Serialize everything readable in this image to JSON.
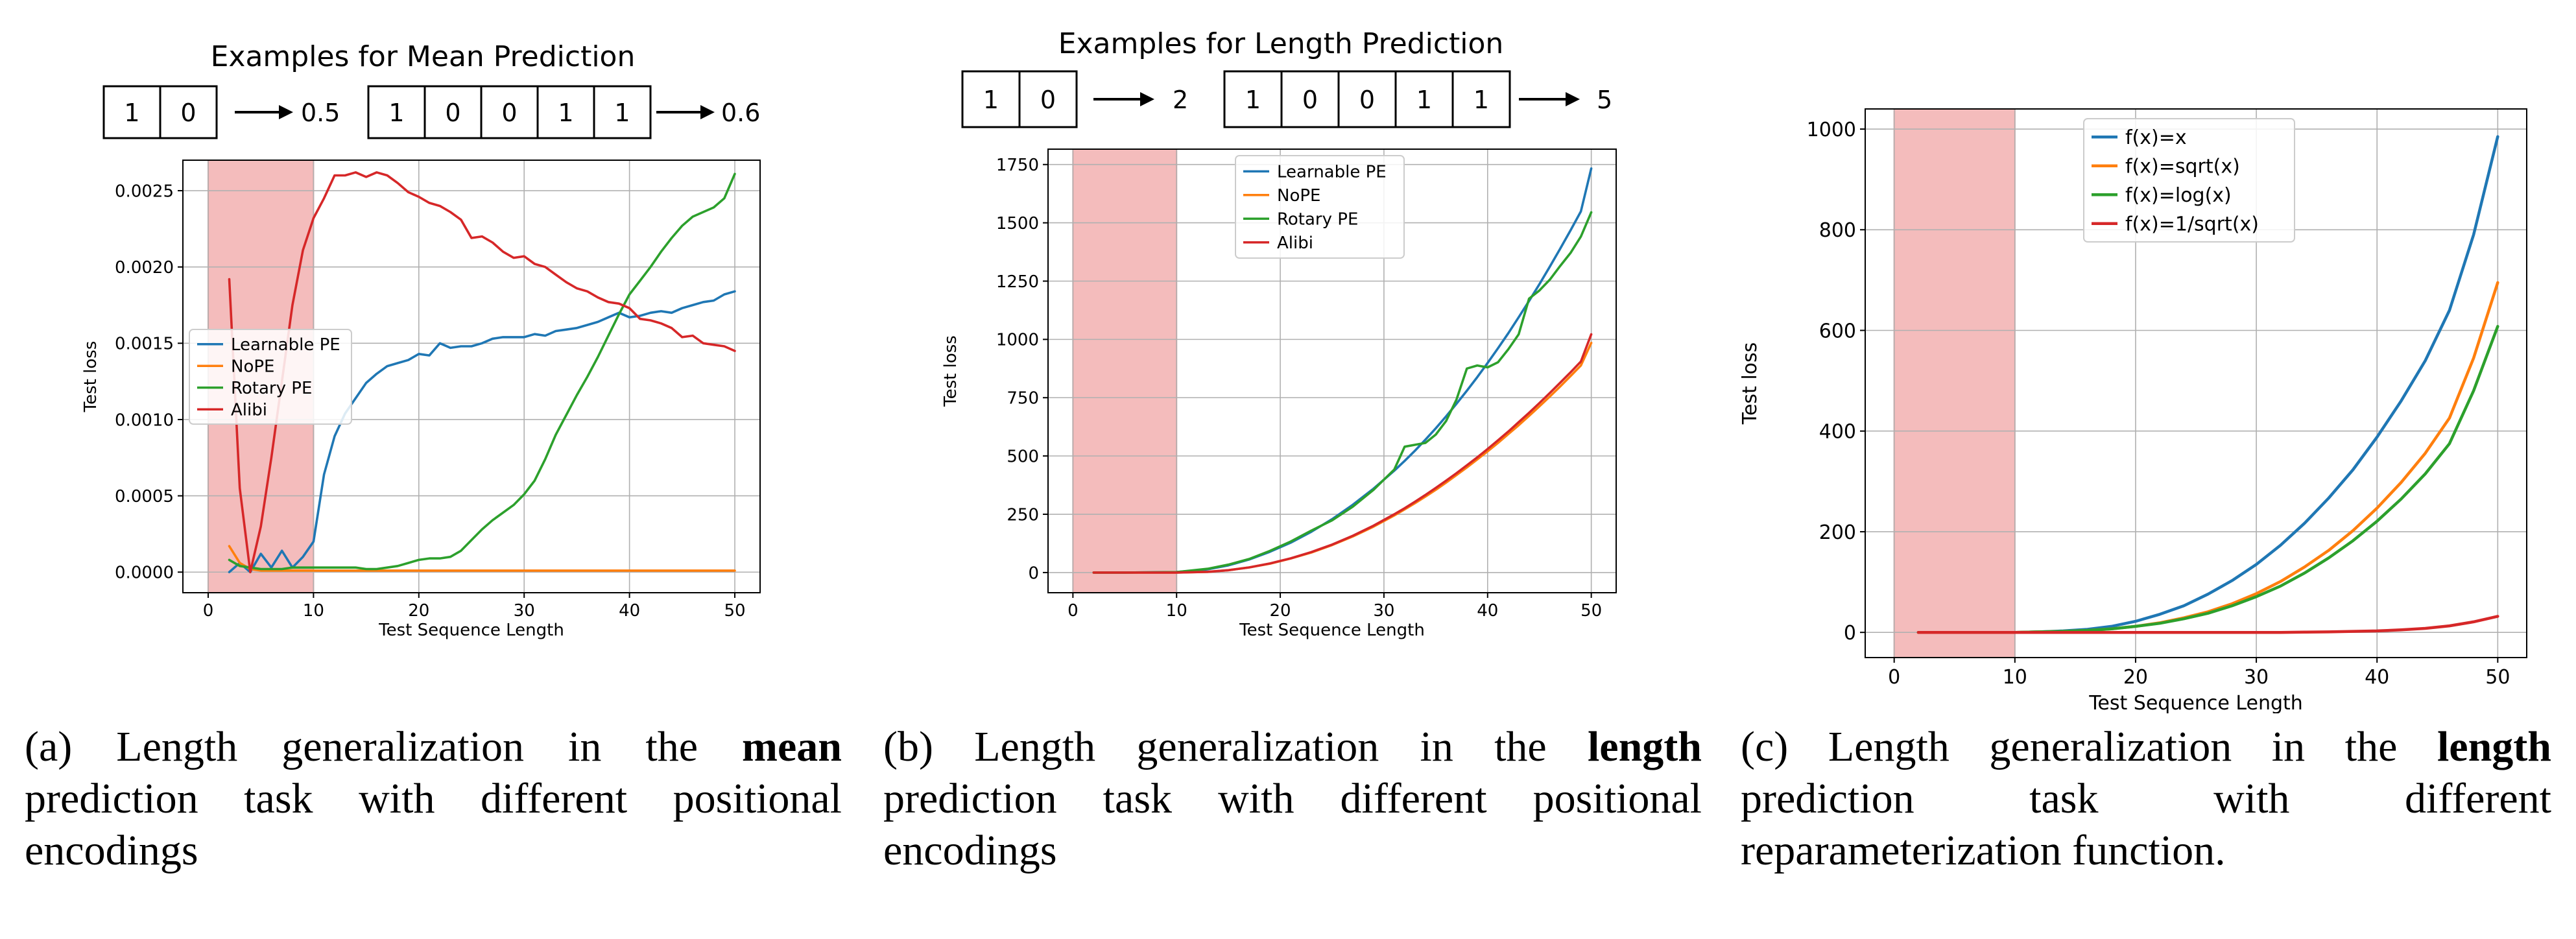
{
  "figure": {
    "panels": [
      {
        "id": "a",
        "example_title": "Examples for Mean Prediction",
        "examples": [
          {
            "tokens": [
              "1",
              "0"
            ],
            "result": "0.5"
          },
          {
            "tokens": [
              "1",
              "0",
              "0",
              "1",
              "1"
            ],
            "result": "0.6"
          }
        ],
        "caption": {
          "prefix": "(a) Length generalization in the ",
          "bold": "mean",
          "suffix": " prediction task with different positional encodings"
        }
      },
      {
        "id": "b",
        "example_title": "Examples for Length Prediction",
        "examples": [
          {
            "tokens": [
              "1",
              "0"
            ],
            "result": "2"
          },
          {
            "tokens": [
              "1",
              "0",
              "0",
              "1",
              "1"
            ],
            "result": "5"
          }
        ],
        "caption": {
          "prefix": "(b) Length generalization in the ",
          "bold": "length",
          "suffix": " prediction task with different positional encodings"
        }
      },
      {
        "id": "c",
        "example_title": "",
        "examples": [],
        "caption": {
          "prefix": "(c) Length generalization in the ",
          "bold": "length",
          "suffix": " prediction task with different reparameterization function."
        }
      }
    ]
  },
  "colors": {
    "blue": "#1f77b4",
    "orange": "#ff7f0e",
    "green": "#2ca02c",
    "red": "#d62728",
    "shade": "#f4bcbc",
    "grid": "#b0b0b0"
  },
  "chart_data": [
    {
      "type": "line",
      "title": "",
      "xlabel": "Test Sequence Length",
      "ylabel": "Test loss",
      "xlim": [
        -2.4,
        52.4
      ],
      "ylim": [
        -0.000135,
        0.0027
      ],
      "xticks": [
        0,
        10,
        20,
        30,
        40,
        50
      ],
      "xtick_labels": [
        "0",
        "10",
        "20",
        "30",
        "40",
        "50"
      ],
      "yticks": [
        0,
        0.0005,
        0.001,
        0.0015,
        0.002,
        0.0025
      ],
      "ytick_labels": [
        "0.0000",
        "0.0005",
        "0.0010",
        "0.0015",
        "0.0020",
        "0.0025"
      ],
      "shaded_region": [
        0,
        10
      ],
      "grid": true,
      "legend": "center-left",
      "x": [
        2,
        3,
        4,
        5,
        6,
        7,
        8,
        9,
        10,
        11,
        12,
        13,
        14,
        15,
        16,
        17,
        18,
        19,
        20,
        21,
        22,
        23,
        24,
        25,
        26,
        27,
        28,
        29,
        30,
        31,
        32,
        33,
        34,
        35,
        36,
        37,
        38,
        39,
        40,
        41,
        42,
        43,
        44,
        45,
        46,
        47,
        48,
        49,
        50
      ],
      "series": [
        {
          "name": "Learnable PE",
          "color": "#1f77b4",
          "values": [
            0.0,
            6e-05,
            0.0,
            0.00012,
            3e-05,
            0.00014,
            3e-05,
            0.0001,
            0.0002,
            0.00064,
            0.00089,
            0.00104,
            0.00114,
            0.00124,
            0.0013,
            0.00135,
            0.00137,
            0.00139,
            0.00143,
            0.00142,
            0.0015,
            0.00147,
            0.00148,
            0.00148,
            0.0015,
            0.00153,
            0.00154,
            0.00154,
            0.00154,
            0.00156,
            0.00155,
            0.00158,
            0.00159,
            0.0016,
            0.00162,
            0.00164,
            0.00167,
            0.0017,
            0.00167,
            0.00168,
            0.0017,
            0.00171,
            0.0017,
            0.00173,
            0.00175,
            0.00177,
            0.00178,
            0.00182,
            0.00184
          ]
        },
        {
          "name": "NoPE",
          "color": "#ff7f0e",
          "values": [
            0.00017,
            6e-05,
            2e-05,
            1e-05,
            1e-05,
            1e-05,
            1e-05,
            1e-05,
            1e-05,
            1e-05,
            1e-05,
            1e-05,
            1e-05,
            1e-05,
            1e-05,
            1e-05,
            1e-05,
            1e-05,
            1e-05,
            1e-05,
            1e-05,
            1e-05,
            1e-05,
            1e-05,
            1e-05,
            1e-05,
            1e-05,
            1e-05,
            1e-05,
            1e-05,
            1e-05,
            1e-05,
            1e-05,
            1e-05,
            1e-05,
            1e-05,
            1e-05,
            1e-05,
            1e-05,
            1e-05,
            1e-05,
            1e-05,
            1e-05,
            1e-05,
            1e-05,
            1e-05,
            1e-05,
            1e-05,
            1e-05
          ]
        },
        {
          "name": "Rotary PE",
          "color": "#2ca02c",
          "values": [
            8e-05,
            4e-05,
            3e-05,
            2e-05,
            2e-05,
            2e-05,
            3e-05,
            3e-05,
            3e-05,
            3e-05,
            3e-05,
            3e-05,
            3e-05,
            2e-05,
            2e-05,
            3e-05,
            4e-05,
            6e-05,
            8e-05,
            9e-05,
            9e-05,
            0.0001,
            0.00014,
            0.00021,
            0.00028,
            0.00034,
            0.00039,
            0.00044,
            0.00051,
            0.0006,
            0.00074,
            0.0009,
            0.00103,
            0.00116,
            0.00128,
            0.00141,
            0.00155,
            0.00169,
            0.00182,
            0.00191,
            0.002,
            0.0021,
            0.00219,
            0.00227,
            0.00233,
            0.00236,
            0.00239,
            0.00245,
            0.00261
          ]
        },
        {
          "name": "Alibi",
          "color": "#d62728",
          "values": [
            0.00192,
            0.00055,
            0.0,
            0.0003,
            0.00075,
            0.00125,
            0.00175,
            0.00211,
            0.00232,
            0.00245,
            0.0026,
            0.0026,
            0.00262,
            0.00259,
            0.00262,
            0.0026,
            0.00255,
            0.00249,
            0.00246,
            0.00242,
            0.0024,
            0.00236,
            0.00231,
            0.00219,
            0.0022,
            0.00216,
            0.0021,
            0.00206,
            0.00207,
            0.00202,
            0.002,
            0.00195,
            0.0019,
            0.00186,
            0.00184,
            0.0018,
            0.00177,
            0.00176,
            0.00173,
            0.00166,
            0.00165,
            0.00163,
            0.0016,
            0.00154,
            0.00155,
            0.0015,
            0.00149,
            0.00148,
            0.00145
          ]
        }
      ]
    },
    {
      "type": "line",
      "title": "",
      "xlabel": "Test Sequence Length",
      "ylabel": "Test loss",
      "xlim": [
        -2.4,
        52.4
      ],
      "ylim": [
        -86.5,
        1816
      ],
      "xticks": [
        0,
        10,
        20,
        30,
        40,
        50
      ],
      "xtick_labels": [
        "0",
        "10",
        "20",
        "30",
        "40",
        "50"
      ],
      "yticks": [
        0,
        250,
        500,
        750,
        1000,
        1250,
        1500,
        1750
      ],
      "ytick_labels": [
        "0",
        "250",
        "500",
        "750",
        "1000",
        "1250",
        "1500",
        "1750"
      ],
      "shaded_region": [
        0,
        10
      ],
      "grid": true,
      "legend": "upper-center",
      "x": [
        2,
        5,
        10,
        13,
        15,
        17,
        19,
        21,
        23,
        25,
        27,
        29,
        31,
        32,
        33,
        34,
        35,
        36,
        37,
        38,
        39,
        40,
        41,
        42,
        43,
        44,
        45,
        46,
        47,
        48,
        49,
        50
      ],
      "series": [
        {
          "name": "Learnable PE",
          "color": "#1f77b4",
          "values": [
            0,
            0,
            2,
            14,
            31,
            56,
            89,
            128,
            175,
            229,
            291,
            360,
            437,
            479,
            523,
            570,
            619,
            670,
            724,
            780,
            838,
            899,
            962,
            1027,
            1095,
            1165,
            1237,
            1312,
            1389,
            1468,
            1549,
            1733
          ]
        },
        {
          "name": "NoPE",
          "color": "#ff7f0e",
          "values": [
            0,
            0,
            0,
            3,
            10,
            22,
            38,
            60,
            86,
            118,
            155,
            197,
            245,
            271,
            298,
            326,
            355,
            386,
            418,
            451,
            485,
            520,
            556,
            594,
            632,
            672,
            713,
            755,
            798,
            843,
            888,
            985
          ]
        },
        {
          "name": "Rotary PE",
          "color": "#2ca02c",
          "values": [
            0,
            0,
            2,
            16,
            34,
            58,
            93,
            133,
            180,
            224,
            283,
            355,
            442,
            540,
            548,
            556,
            592,
            650,
            742,
            875,
            888,
            880,
            902,
            958,
            1022,
            1175,
            1210,
            1256,
            1315,
            1371,
            1441,
            1545
          ]
        },
        {
          "name": "Alibi",
          "color": "#d62728",
          "values": [
            0,
            0,
            0,
            3,
            10,
            22,
            39,
            61,
            88,
            120,
            158,
            201,
            250,
            276,
            304,
            333,
            363,
            394,
            426,
            460,
            494,
            530,
            567,
            605,
            645,
            685,
            727,
            770,
            814,
            859,
            905,
            1022
          ]
        }
      ]
    },
    {
      "type": "line",
      "title": "",
      "xlabel": "Test Sequence Length",
      "ylabel": "Test loss",
      "xlim": [
        -2.4,
        52.4
      ],
      "ylim": [
        -50,
        1040
      ],
      "xticks": [
        0,
        10,
        20,
        30,
        40,
        50
      ],
      "xtick_labels": [
        "0",
        "10",
        "20",
        "30",
        "40",
        "50"
      ],
      "yticks": [
        0,
        200,
        400,
        600,
        800,
        1000
      ],
      "ytick_labels": [
        "0",
        "200",
        "400",
        "600",
        "800",
        "1000"
      ],
      "shaded_region": [
        0,
        10
      ],
      "grid": true,
      "legend": "upper-center",
      "x": [
        2,
        5,
        10,
        12,
        14,
        16,
        18,
        20,
        22,
        24,
        26,
        28,
        30,
        32,
        34,
        36,
        38,
        40,
        42,
        44,
        46,
        48,
        50
      ],
      "series": [
        {
          "name": "f(x)=x",
          "color": "#1f77b4",
          "values": [
            0,
            0,
            0,
            1,
            3,
            6,
            12,
            22,
            36,
            53,
            76,
            103,
            135,
            173,
            217,
            267,
            323,
            388,
            460,
            540,
            640,
            790,
            985
          ]
        },
        {
          "name": "f(x)=sqrt(x)",
          "color": "#ff7f0e",
          "values": [
            0,
            0,
            0,
            1,
            2,
            4,
            7,
            12,
            19,
            29,
            41,
            57,
            77,
            101,
            130,
            163,
            202,
            247,
            298,
            356,
            426,
            545,
            695
          ]
        },
        {
          "name": "f(x)=log(x)",
          "color": "#2ca02c",
          "values": [
            0,
            0,
            0,
            1,
            2,
            4,
            7,
            12,
            18,
            27,
            38,
            53,
            71,
            92,
            118,
            148,
            182,
            221,
            265,
            315,
            375,
            480,
            608
          ]
        },
        {
          "name": "f(x)=1/sqrt(x)",
          "color": "#d62728",
          "values": [
            0,
            0,
            0,
            0,
            0,
            0,
            0,
            0,
            0,
            0,
            0,
            0,
            0,
            0,
            0.5,
            1,
            2,
            3,
            5,
            8,
            13,
            21,
            32
          ]
        }
      ]
    }
  ]
}
